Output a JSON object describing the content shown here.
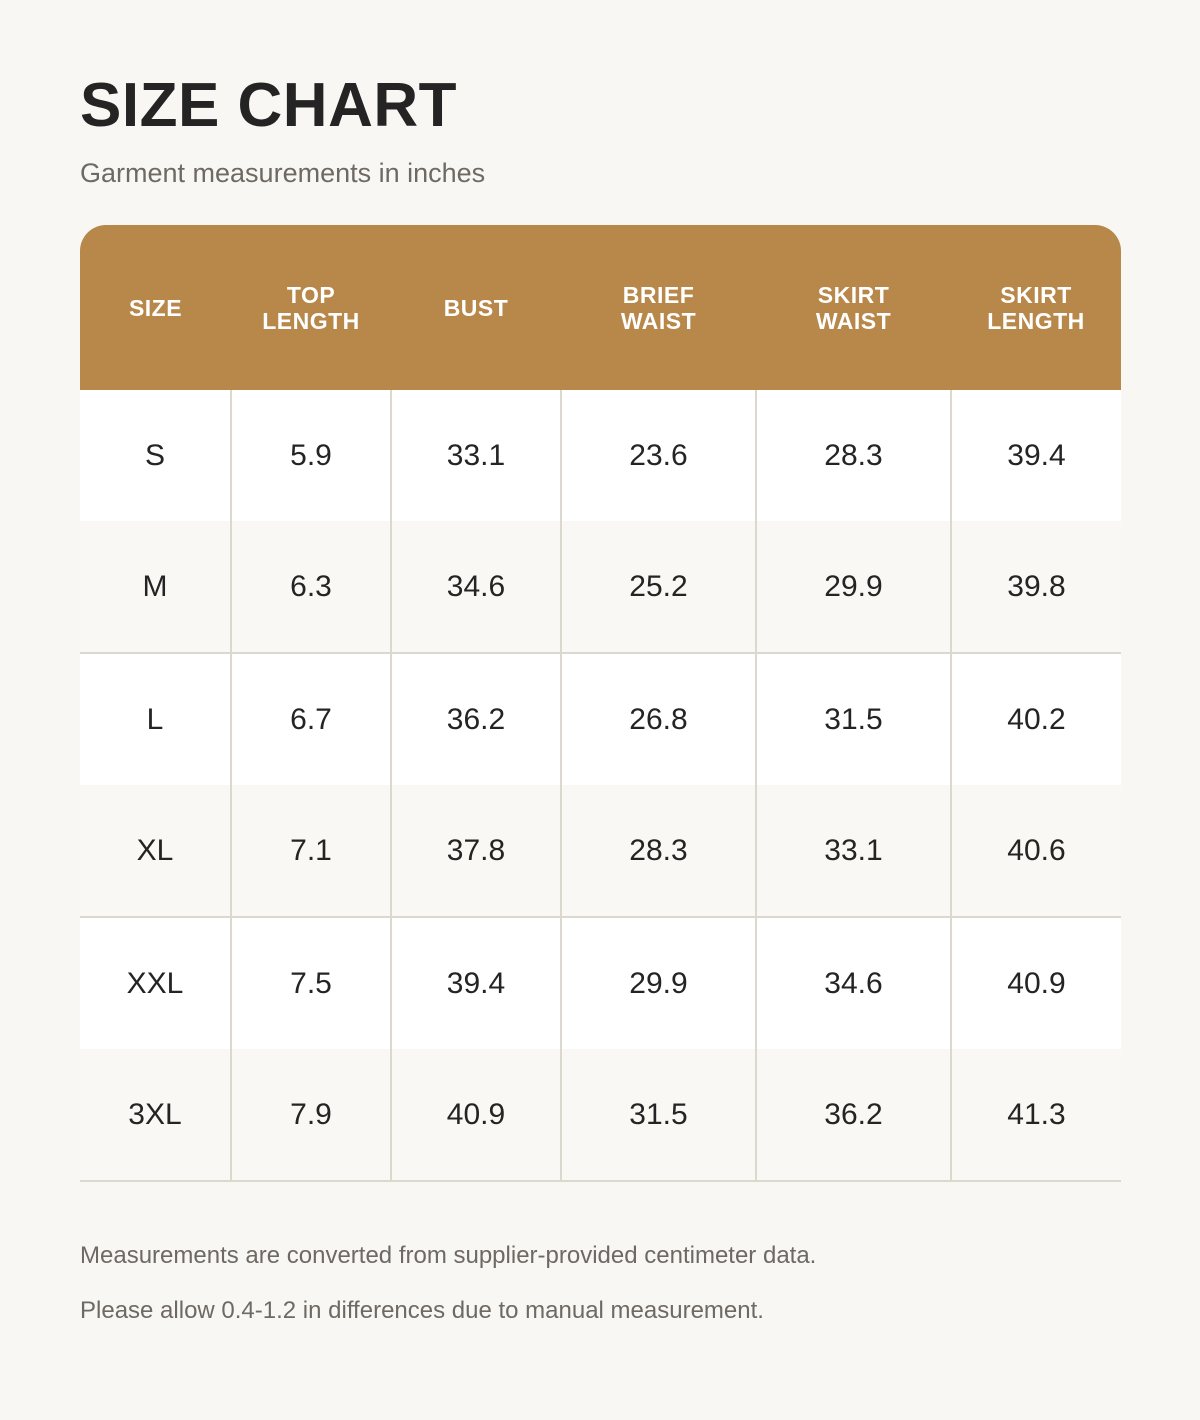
{
  "title": "SIZE CHART",
  "subtitle": "Garment measurements in inches",
  "table": {
    "headers": [
      [
        "SIZE"
      ],
      [
        "TOP",
        "LENGTH"
      ],
      [
        "BUST"
      ],
      [
        "BRIEF",
        "WAIST"
      ],
      [
        "SKIRT",
        "WAIST"
      ],
      [
        "SKIRT",
        "LENGTH"
      ]
    ],
    "rows": [
      [
        "S",
        "5.9",
        "33.1",
        "23.6",
        "28.3",
        "39.4"
      ],
      [
        "M",
        "6.3",
        "34.6",
        "25.2",
        "29.9",
        "39.8"
      ],
      [
        "L",
        "6.7",
        "36.2",
        "26.8",
        "31.5",
        "40.2"
      ],
      [
        "XL",
        "7.1",
        "37.8",
        "28.3",
        "33.1",
        "40.6"
      ],
      [
        "XXL",
        "7.5",
        "39.4",
        "29.9",
        "34.6",
        "40.9"
      ],
      [
        "3XL",
        "7.9",
        "40.9",
        "31.5",
        "36.2",
        "41.3"
      ]
    ]
  },
  "notes": [
    "Measurements are converted from supplier-provided centimeter data.",
    "Please allow 0.4-1.2 in differences due to manual measurement."
  ],
  "colors": {
    "header": "#b8874a",
    "background": "#f8f7f3",
    "grid": "#ddd8ce"
  }
}
